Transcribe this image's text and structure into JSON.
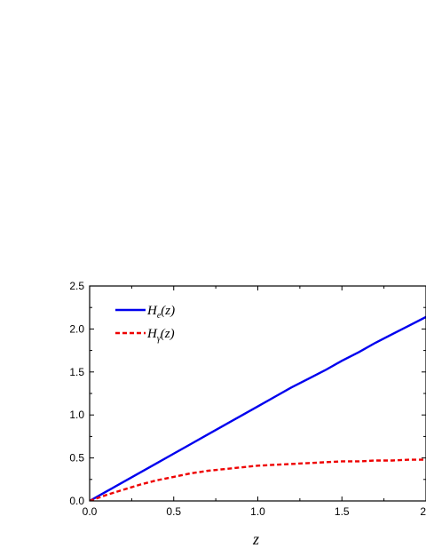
{
  "chart_data": {
    "type": "line",
    "xlabel": "z",
    "ylabel": "",
    "xlim": [
      0,
      2.0
    ],
    "ylim": [
      0,
      2.5
    ],
    "x_ticks": [
      {
        "value": 0.0,
        "label": "0.0"
      },
      {
        "value": 0.5,
        "label": "0.5"
      },
      {
        "value": 1.0,
        "label": "1.0"
      },
      {
        "value": 1.5,
        "label": "1.5"
      },
      {
        "value": 2.0,
        "label": "2"
      }
    ],
    "y_ticks": [
      {
        "value": 0.0,
        "label": "0.0"
      },
      {
        "value": 0.5,
        "label": "0.5"
      },
      {
        "value": 1.0,
        "label": "1.0"
      },
      {
        "value": 1.5,
        "label": "1.5"
      },
      {
        "value": 2.0,
        "label": "2.0"
      },
      {
        "value": 2.5,
        "label": "2.5"
      }
    ],
    "legend_position": "top-left",
    "grid": false,
    "series": [
      {
        "name": "H_e(z)",
        "legend_main": "H",
        "legend_sub": "e",
        "legend_tail": "(z)",
        "color": "#0000ee",
        "style": "solid",
        "x": [
          0.0,
          0.1,
          0.2,
          0.3,
          0.4,
          0.5,
          0.6,
          0.7,
          0.8,
          0.9,
          1.0,
          1.1,
          1.2,
          1.3,
          1.4,
          1.5,
          1.6,
          1.7,
          1.8,
          1.9,
          2.0
        ],
        "y": [
          0.0,
          0.11,
          0.22,
          0.33,
          0.44,
          0.55,
          0.66,
          0.77,
          0.88,
          0.99,
          1.1,
          1.21,
          1.32,
          1.42,
          1.52,
          1.63,
          1.73,
          1.84,
          1.94,
          2.04,
          2.14
        ]
      },
      {
        "name": "H_γ(z)",
        "legend_main": "H",
        "legend_sub": "γ",
        "legend_tail": "(z)",
        "color": "#ee0000",
        "style": "dashed",
        "x": [
          0.0,
          0.1,
          0.2,
          0.3,
          0.4,
          0.5,
          0.6,
          0.7,
          0.8,
          0.9,
          1.0,
          1.1,
          1.2,
          1.3,
          1.4,
          1.5,
          1.6,
          1.7,
          1.8,
          1.9,
          2.0
        ],
        "y": [
          0.0,
          0.07,
          0.13,
          0.19,
          0.24,
          0.28,
          0.32,
          0.35,
          0.37,
          0.39,
          0.41,
          0.42,
          0.43,
          0.44,
          0.45,
          0.46,
          0.46,
          0.47,
          0.47,
          0.48,
          0.48
        ]
      }
    ]
  }
}
